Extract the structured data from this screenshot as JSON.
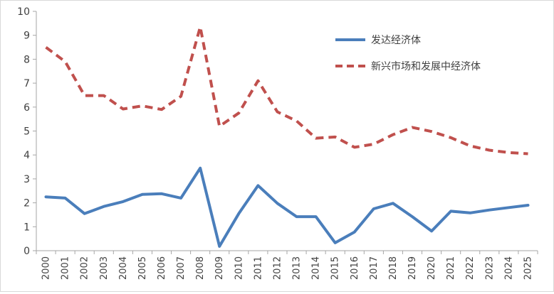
{
  "chart_data": {
    "type": "line",
    "title": "",
    "xlabel": "",
    "ylabel": "",
    "ylim": [
      0,
      10
    ],
    "yticks": [
      0,
      1,
      2,
      3,
      4,
      5,
      6,
      7,
      8,
      9,
      10
    ],
    "grid": false,
    "legend_position": "top-right",
    "categories": [
      "2000",
      "2001",
      "2002",
      "2003",
      "2004",
      "2005",
      "2006",
      "2007",
      "2008",
      "2009",
      "2010",
      "2011",
      "2012",
      "2013",
      "2014",
      "2015",
      "2016",
      "2017",
      "2018",
      "2019",
      "2020",
      "2021",
      "2022",
      "2023",
      "2024",
      "2025"
    ],
    "series": [
      {
        "name": "发达经济体",
        "color": "#4a7ebb",
        "dash": "solid",
        "values": [
          2.25,
          2.2,
          1.55,
          1.85,
          2.05,
          2.35,
          2.38,
          2.2,
          3.45,
          0.18,
          1.55,
          2.72,
          1.98,
          1.42,
          1.42,
          0.33,
          0.78,
          1.75,
          1.98,
          1.42,
          0.82,
          1.65,
          1.58,
          1.7,
          1.8,
          1.9
        ]
      },
      {
        "name": "新兴市场和发展中经济体",
        "color": "#c0504d",
        "dash": "dashed",
        "values": [
          8.5,
          7.9,
          6.48,
          6.48,
          5.92,
          6.05,
          5.9,
          6.45,
          9.35,
          5.2,
          5.75,
          7.1,
          5.8,
          5.42,
          4.7,
          4.75,
          4.32,
          4.45,
          4.85,
          5.15,
          4.98,
          4.72,
          4.38,
          4.2,
          4.1,
          4.05
        ]
      }
    ]
  }
}
